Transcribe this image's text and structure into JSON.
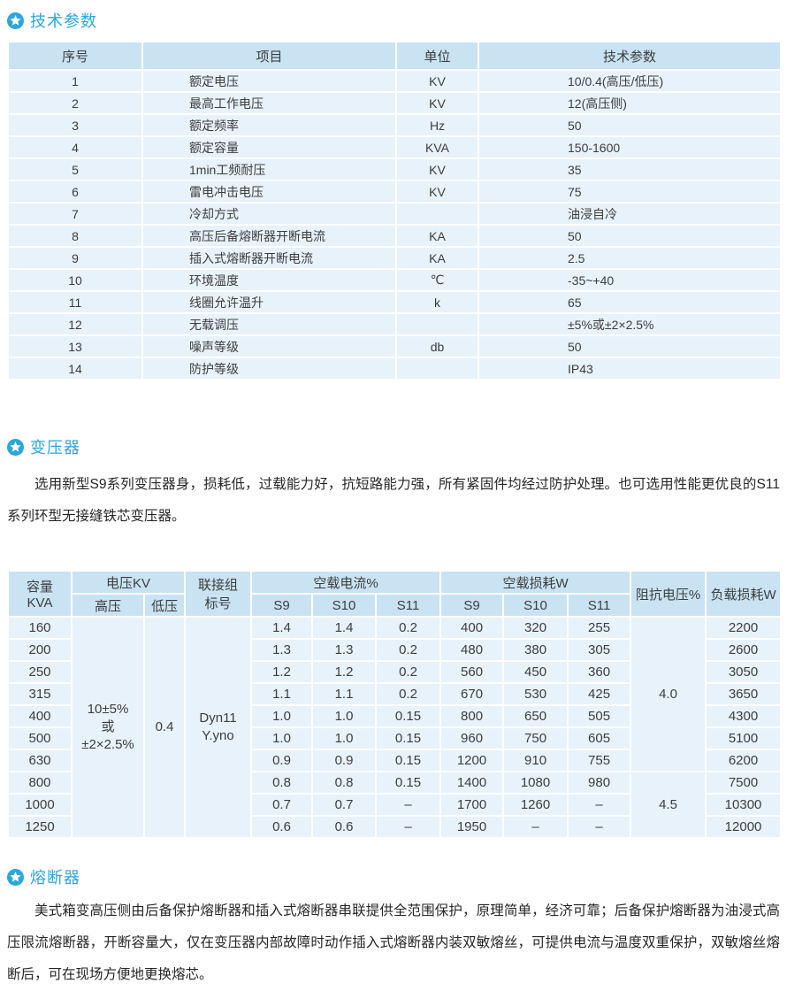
{
  "accent_color": "#2aa7db",
  "sections": {
    "tech_params": {
      "title": "技术参数"
    },
    "transformer": {
      "title": "变压器",
      "paragraph": "选用新型S9系列变压器身，损耗低，过载能力好，抗短路能力强，所有紧固件均经过防护处理。也可选用性能更优良的S11系列环型无接缝铁芯变压器。"
    },
    "fuse": {
      "title": "熔断器",
      "paragraph": "美式箱变高压侧由后备保护熔断器和插入式熔断器串联提供全范围保护，原理简单，经济可靠；后备保护熔断器为油浸式高压限流熔断器，开断容量大，仅在变压器内部故障时动作插入式熔断器内装双敏熔丝，可提供电流与温度双重保护，双敏熔丝熔断后，可在现场方便地更换熔芯。"
    }
  },
  "table1": {
    "headers": [
      "序号",
      "项目",
      "单位",
      "技术参数"
    ],
    "rows": [
      [
        "1",
        "额定电压",
        "KV",
        "10/0.4(高压/低压)"
      ],
      [
        "2",
        "最高工作电压",
        "KV",
        "12(高压侧)"
      ],
      [
        "3",
        "额定频率",
        "Hz",
        "50"
      ],
      [
        "4",
        "额定容量",
        "KVA",
        "150-1600"
      ],
      [
        "5",
        "1min工频耐压",
        "KV",
        "35"
      ],
      [
        "6",
        "雷电冲击电压",
        "KV",
        "75"
      ],
      [
        "7",
        "冷却方式",
        "",
        "油浸自冷"
      ],
      [
        "8",
        "高压后备熔断器开断电流",
        "KA",
        "50"
      ],
      [
        "9",
        "插入式熔断器开断电流",
        "KA",
        "2.5"
      ],
      [
        "10",
        "环境温度",
        "℃",
        "-35~+40"
      ],
      [
        "11",
        "线圈允许温升",
        "k",
        "65"
      ],
      [
        "12",
        "无载调压",
        "",
        "±5%或±2×2.5%"
      ],
      [
        "13",
        "噪声等级",
        "db",
        "50"
      ],
      [
        "14",
        "防护等级",
        "",
        "IP43"
      ]
    ]
  },
  "table2": {
    "header": {
      "capacity_l1": "容量",
      "capacity_l2": "KVA",
      "voltage": "电压KV",
      "hv": "高压",
      "lv": "低压",
      "vector_l1": "联接组",
      "vector_l2": "标号",
      "no_load_current": "空载电流%",
      "no_load_loss": "空载损耗W",
      "sub": [
        "S9",
        "S10",
        "S11"
      ],
      "impedance": "阻抗电压%",
      "load_loss": "负载损耗W"
    },
    "hv_value": [
      "10±5%",
      "或",
      "±2×2.5%"
    ],
    "lv_value": "0.4",
    "vector_value": [
      "Dyn11",
      "Y.yno"
    ],
    "impedance_values": [
      "4.0",
      "4.5"
    ],
    "impedance_spans": [
      7,
      3
    ],
    "rows": [
      {
        "kva": "160",
        "nlc": [
          "1.4",
          "1.4",
          "0.2"
        ],
        "nll": [
          "400",
          "320",
          "255"
        ],
        "ll": "2200"
      },
      {
        "kva": "200",
        "nlc": [
          "1.3",
          "1.3",
          "0.2"
        ],
        "nll": [
          "480",
          "380",
          "305"
        ],
        "ll": "2600"
      },
      {
        "kva": "250",
        "nlc": [
          "1.2",
          "1.2",
          "0.2"
        ],
        "nll": [
          "560",
          "450",
          "360"
        ],
        "ll": "3050"
      },
      {
        "kva": "315",
        "nlc": [
          "1.1",
          "1.1",
          "0.2"
        ],
        "nll": [
          "670",
          "530",
          "425"
        ],
        "ll": "3650"
      },
      {
        "kva": "400",
        "nlc": [
          "1.0",
          "1.0",
          "0.15"
        ],
        "nll": [
          "800",
          "650",
          "505"
        ],
        "ll": "4300"
      },
      {
        "kva": "500",
        "nlc": [
          "1.0",
          "1.0",
          "0.15"
        ],
        "nll": [
          "960",
          "750",
          "605"
        ],
        "ll": "5100"
      },
      {
        "kva": "630",
        "nlc": [
          "0.9",
          "0.9",
          "0.15"
        ],
        "nll": [
          "1200",
          "910",
          "755"
        ],
        "ll": "6200"
      },
      {
        "kva": "800",
        "nlc": [
          "0.8",
          "0.8",
          "0.15"
        ],
        "nll": [
          "1400",
          "1080",
          "980"
        ],
        "ll": "7500"
      },
      {
        "kva": "1000",
        "nlc": [
          "0.7",
          "0.7",
          "–"
        ],
        "nll": [
          "1700",
          "1260",
          "–"
        ],
        "ll": "10300"
      },
      {
        "kva": "1250",
        "nlc": [
          "0.6",
          "0.6",
          "–"
        ],
        "nll": [
          "1950",
          "–",
          "–"
        ],
        "ll": "12000"
      }
    ]
  }
}
